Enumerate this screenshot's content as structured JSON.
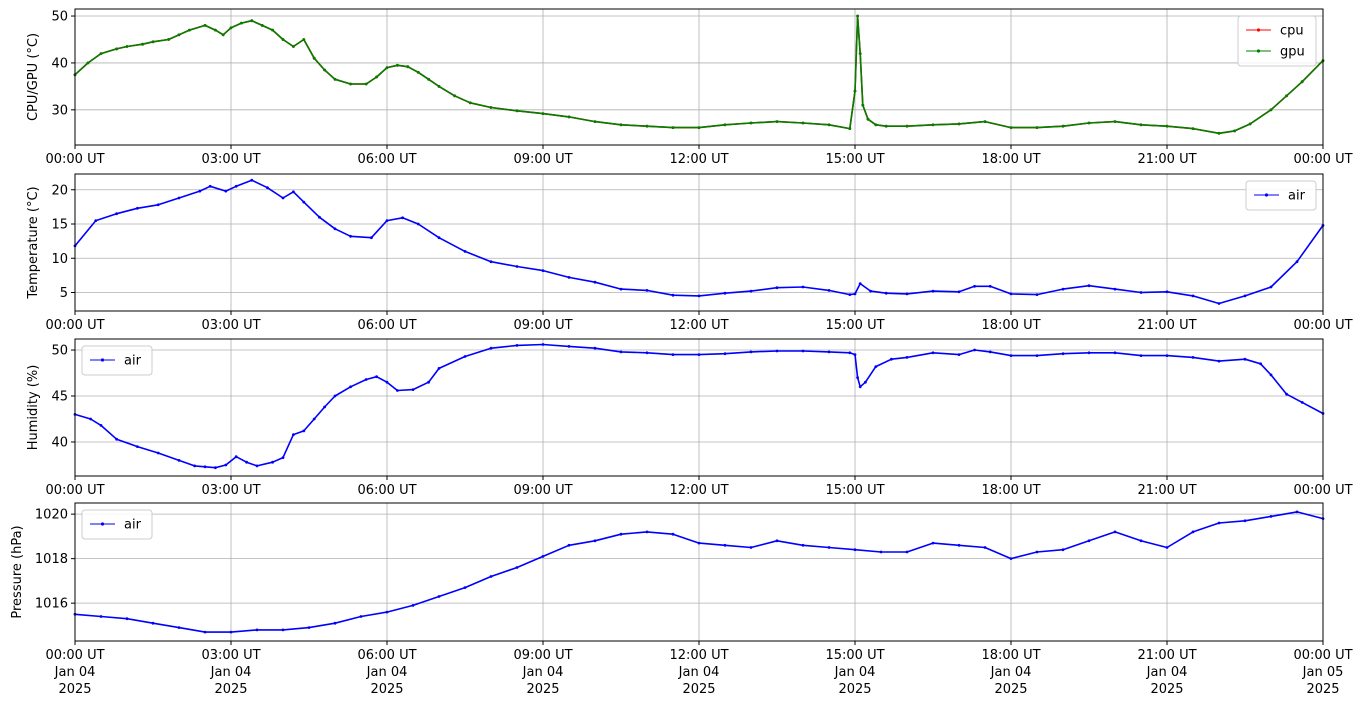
{
  "chart_data": [
    {
      "type": "line",
      "ylabel": "CPU/GPU (°C)",
      "xlim": [
        0,
        24
      ],
      "ylim": [
        22.5,
        51.5
      ],
      "yticks": [
        30,
        40,
        50
      ],
      "x_tick_labels": [
        "00:00 UT",
        "03:00 UT",
        "06:00 UT",
        "09:00 UT",
        "12:00 UT",
        "15:00 UT",
        "18:00 UT",
        "21:00 UT",
        "00:00 UT"
      ],
      "grid": true,
      "legend_position": "top-right",
      "series": [
        {
          "name": "cpu",
          "color": "#ff0000",
          "x": [
            0,
            0.25,
            0.5,
            0.8,
            1,
            1.3,
            1.5,
            1.8,
            2,
            2.2,
            2.5,
            2.7,
            2.85,
            3,
            3.2,
            3.4,
            3.6,
            3.8,
            4,
            4.2,
            4.4,
            4.6,
            4.8,
            5,
            5.3,
            5.6,
            5.8,
            6,
            6.2,
            6.4,
            6.6,
            6.8,
            7,
            7.3,
            7.6,
            8,
            8.5,
            9,
            9.5,
            10,
            10.5,
            11,
            11.5,
            12,
            12.5,
            13,
            13.5,
            14,
            14.5,
            14.9,
            15,
            15.05,
            15.1,
            15.15,
            15.25,
            15.4,
            15.6,
            16,
            16.5,
            17,
            17.5,
            18,
            18.5,
            19,
            19.5,
            20,
            20.5,
            21,
            21.5,
            22,
            22.3,
            22.6,
            23,
            23.3,
            23.6,
            24
          ],
          "values": [
            37.5,
            40,
            42,
            43,
            43.5,
            44,
            44.5,
            45,
            46,
            47,
            48,
            47,
            46,
            47.5,
            48.5,
            49,
            48,
            47,
            45,
            43.5,
            45,
            41,
            38.5,
            36.5,
            35.5,
            35.5,
            37,
            39,
            39.5,
            39.2,
            38,
            36.5,
            35,
            33,
            31.5,
            30.5,
            29.8,
            29.2,
            28.5,
            27.5,
            26.8,
            26.5,
            26.2,
            26.2,
            26.8,
            27.2,
            27.5,
            27.2,
            26.8,
            26,
            34,
            50,
            42,
            31,
            28,
            26.8,
            26.5,
            26.5,
            26.8,
            27,
            27.5,
            26.2,
            26.2,
            26.5,
            27.2,
            27.5,
            26.8,
            26.5,
            26,
            25,
            25.5,
            27,
            30,
            33,
            36,
            40.5
          ]
        },
        {
          "name": "gpu",
          "color": "#008000",
          "x": [
            0,
            0.25,
            0.5,
            0.8,
            1,
            1.3,
            1.5,
            1.8,
            2,
            2.2,
            2.5,
            2.7,
            2.85,
            3,
            3.2,
            3.4,
            3.6,
            3.8,
            4,
            4.2,
            4.4,
            4.6,
            4.8,
            5,
            5.3,
            5.6,
            5.8,
            6,
            6.2,
            6.4,
            6.6,
            6.8,
            7,
            7.3,
            7.6,
            8,
            8.5,
            9,
            9.5,
            10,
            10.5,
            11,
            11.5,
            12,
            12.5,
            13,
            13.5,
            14,
            14.5,
            14.9,
            15,
            15.05,
            15.1,
            15.15,
            15.25,
            15.4,
            15.6,
            16,
            16.5,
            17,
            17.5,
            18,
            18.5,
            19,
            19.5,
            20,
            20.5,
            21,
            21.5,
            22,
            22.3,
            22.6,
            23,
            23.3,
            23.6,
            24
          ],
          "values": [
            37.5,
            40,
            42,
            43,
            43.5,
            44,
            44.5,
            45,
            46,
            47,
            48,
            47,
            46,
            47.5,
            48.5,
            49,
            48,
            47,
            45,
            43.5,
            45,
            41,
            38.5,
            36.5,
            35.5,
            35.5,
            37,
            39,
            39.5,
            39.2,
            38,
            36.5,
            35,
            33,
            31.5,
            30.5,
            29.8,
            29.2,
            28.5,
            27.5,
            26.8,
            26.5,
            26.2,
            26.2,
            26.8,
            27.2,
            27.5,
            27.2,
            26.8,
            26,
            34,
            50,
            42,
            31,
            28,
            26.8,
            26.5,
            26.5,
            26.8,
            27,
            27.5,
            26.2,
            26.2,
            26.5,
            27.2,
            27.5,
            26.8,
            26.5,
            26,
            25,
            25.5,
            27,
            30,
            33,
            36,
            40.5
          ]
        }
      ]
    },
    {
      "type": "line",
      "ylabel": "Temperature (°C)",
      "xlim": [
        0,
        24
      ],
      "ylim": [
        2.3,
        22.3
      ],
      "yticks": [
        5,
        10,
        15,
        20
      ],
      "x_tick_labels": [
        "00:00 UT",
        "03:00 UT",
        "06:00 UT",
        "09:00 UT",
        "12:00 UT",
        "15:00 UT",
        "18:00 UT",
        "21:00 UT",
        "00:00 UT"
      ],
      "grid": true,
      "legend_position": "top-right",
      "series": [
        {
          "name": "air",
          "color": "#0000ff",
          "x": [
            0,
            0.4,
            0.8,
            1.2,
            1.6,
            2,
            2.4,
            2.6,
            2.9,
            3.1,
            3.4,
            3.7,
            4,
            4.2,
            4.4,
            4.7,
            5,
            5.3,
            5.7,
            6,
            6.3,
            6.6,
            7,
            7.5,
            8,
            8.5,
            9,
            9.5,
            10,
            10.5,
            11,
            11.5,
            12,
            12.5,
            13,
            13.5,
            14,
            14.5,
            14.9,
            15,
            15.1,
            15.3,
            15.6,
            16,
            16.5,
            17,
            17.3,
            17.6,
            18,
            18.5,
            19,
            19.5,
            20,
            20.5,
            21,
            21.5,
            22,
            22.5,
            23,
            23.5,
            24
          ],
          "values": [
            11.8,
            15.5,
            16.5,
            17.3,
            17.8,
            18.8,
            19.8,
            20.5,
            19.8,
            20.5,
            21.4,
            20.3,
            18.8,
            19.7,
            18.2,
            16,
            14.3,
            13.2,
            13,
            15.5,
            15.9,
            15,
            13,
            11,
            9.5,
            8.8,
            8.2,
            7.2,
            6.5,
            5.5,
            5.3,
            4.6,
            4.5,
            4.9,
            5.2,
            5.7,
            5.8,
            5.3,
            4.7,
            4.8,
            6.3,
            5.2,
            4.9,
            4.8,
            5.2,
            5.1,
            5.9,
            5.9,
            4.8,
            4.7,
            5.5,
            6,
            5.5,
            5.0,
            5.1,
            4.5,
            3.4,
            4.5,
            5.8,
            9.5,
            14.8
          ]
        }
      ]
    },
    {
      "type": "line",
      "ylabel": "Humidity (%)",
      "xlim": [
        0,
        24
      ],
      "ylim": [
        36.3,
        51.2
      ],
      "yticks": [
        40,
        45,
        50
      ],
      "x_tick_labels": [
        "00:00 UT",
        "03:00 UT",
        "06:00 UT",
        "09:00 UT",
        "12:00 UT",
        "15:00 UT",
        "18:00 UT",
        "21:00 UT",
        "00:00 UT"
      ],
      "grid": true,
      "legend_position": "top-left",
      "series": [
        {
          "name": "air",
          "color": "#0000ff",
          "x": [
            0,
            0.3,
            0.5,
            0.8,
            1.2,
            1.6,
            2,
            2.3,
            2.5,
            2.7,
            2.9,
            3.1,
            3.3,
            3.5,
            3.8,
            4,
            4.2,
            4.4,
            4.6,
            4.8,
            5,
            5.3,
            5.6,
            5.8,
            6,
            6.2,
            6.5,
            6.8,
            7,
            7.5,
            8,
            8.5,
            9,
            9.5,
            10,
            10.5,
            11,
            11.5,
            12,
            12.5,
            13,
            13.5,
            14,
            14.5,
            14.9,
            15,
            15.05,
            15.1,
            15.2,
            15.4,
            15.7,
            16,
            16.5,
            17,
            17.3,
            17.6,
            18,
            18.5,
            19,
            19.5,
            20,
            20.5,
            21,
            21.5,
            22,
            22.5,
            22.8,
            23,
            23.3,
            23.6,
            24
          ],
          "values": [
            43,
            42.5,
            41.8,
            40.3,
            39.5,
            38.8,
            38,
            37.4,
            37.3,
            37.2,
            37.5,
            38.4,
            37.8,
            37.4,
            37.8,
            38.3,
            40.8,
            41.2,
            42.5,
            43.8,
            45,
            46,
            46.8,
            47.1,
            46.5,
            45.6,
            45.7,
            46.5,
            48,
            49.3,
            50.2,
            50.5,
            50.6,
            50.4,
            50.2,
            49.8,
            49.7,
            49.5,
            49.5,
            49.6,
            49.8,
            49.9,
            49.9,
            49.8,
            49.7,
            49.5,
            47,
            46,
            46.5,
            48.2,
            49,
            49.2,
            49.7,
            49.5,
            50,
            49.8,
            49.4,
            49.4,
            49.6,
            49.7,
            49.7,
            49.4,
            49.4,
            49.2,
            48.8,
            49,
            48.5,
            47.3,
            45.2,
            44.3,
            43.1
          ]
        }
      ]
    },
    {
      "type": "line",
      "ylabel": "Pressure (hPa)",
      "xlim": [
        0,
        24
      ],
      "ylim": [
        1014.3,
        1020.5
      ],
      "yticks": [
        1016,
        1018,
        1020
      ],
      "x_tick_labels": [
        "00:00 UT\nJan 04\n2025",
        "03:00 UT\nJan 04\n2025",
        "06:00 UT\nJan 04\n2025",
        "09:00 UT\nJan 04\n2025",
        "12:00 UT\nJan 04\n2025",
        "15:00 UT\nJan 04\n2025",
        "18:00 UT\nJan 04\n2025",
        "21:00 UT\nJan 04\n2025",
        "00:00 UT\nJan 05\n2025"
      ],
      "grid": true,
      "legend_position": "top-left",
      "series": [
        {
          "name": "air",
          "color": "#0000ff",
          "x": [
            0,
            0.5,
            1,
            1.5,
            2,
            2.5,
            3,
            3.5,
            4,
            4.5,
            5,
            5.5,
            6,
            6.5,
            7,
            7.5,
            8,
            8.5,
            9,
            9.5,
            10,
            10.5,
            11,
            11.5,
            12,
            12.5,
            13,
            13.5,
            14,
            14.5,
            15,
            15.5,
            16,
            16.5,
            17,
            17.5,
            18,
            18.5,
            19,
            19.5,
            20,
            20.5,
            21,
            21.5,
            22,
            22.5,
            23,
            23.5,
            24
          ],
          "values": [
            1015.5,
            1015.4,
            1015.3,
            1015.1,
            1014.9,
            1014.7,
            1014.7,
            1014.8,
            1014.8,
            1014.9,
            1015.1,
            1015.4,
            1015.6,
            1015.9,
            1016.3,
            1016.7,
            1017.2,
            1017.6,
            1018.1,
            1018.6,
            1018.8,
            1019.1,
            1019.2,
            1019.1,
            1018.7,
            1018.6,
            1018.5,
            1018.8,
            1018.6,
            1018.5,
            1018.4,
            1018.3,
            1018.3,
            1018.7,
            1018.6,
            1018.5,
            1018.0,
            1018.3,
            1018.4,
            1018.8,
            1019.2,
            1018.8,
            1018.5,
            1019.2,
            1019.6,
            1019.7,
            1019.9,
            1020.1,
            1019.8
          ]
        }
      ]
    }
  ]
}
